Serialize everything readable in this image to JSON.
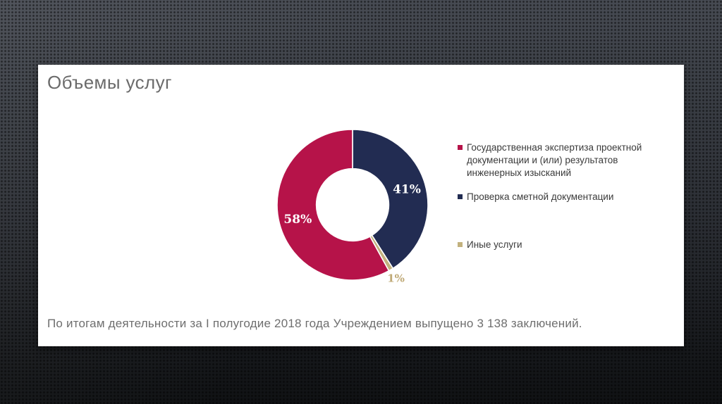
{
  "slide": {
    "title": "Объемы услуг",
    "caption": "По итогам деятельности за I полугодие 2018 года Учреждением выпущено 3 138 заключений."
  },
  "chart_data": {
    "type": "pie",
    "subtype": "donut",
    "donut_hole_ratio": 0.48,
    "start_angle_deg": 0,
    "direction": "clockwise",
    "title": "Объемы услуг",
    "legend_position": "right",
    "slices_draw_order": [
      {
        "name": "Проверка сметной документации",
        "value": 41,
        "pct_label": "41%",
        "color": "#222C52",
        "label_color": "#FFFFFF",
        "label_inside": true
      },
      {
        "name": "Иные услуги",
        "value": 1,
        "pct_label": "1%",
        "color": "#C2B17E",
        "label_color": "#BFA976",
        "label_inside": false
      },
      {
        "name": "Государственная экспертиза проектной документации и (или) результатов инженерных изысканий",
        "value": 58,
        "pct_label": "58%",
        "color": "#B61349",
        "label_color": "#FFFFFF",
        "label_inside": true
      }
    ],
    "legend": [
      {
        "label": "Государственная экспертиза проектной документации и (или) результатов инженерных изысканий",
        "color": "#B61349"
      },
      {
        "label": "Проверка сметной документации",
        "color": "#222C52"
      },
      {
        "label": "Иные услуги",
        "color": "#C2B17E"
      }
    ],
    "totals_note": "3 138 заключений за I полугодие 2018 года"
  }
}
